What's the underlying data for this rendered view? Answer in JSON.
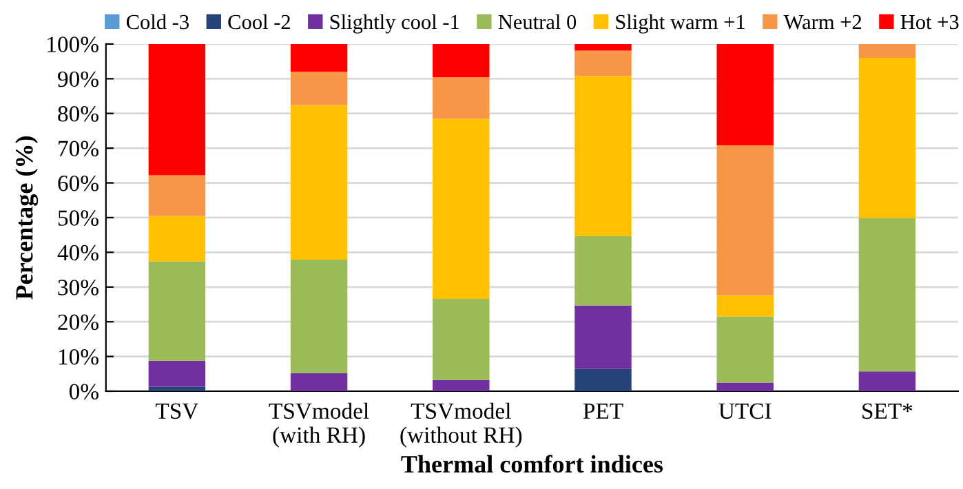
{
  "chart_data": {
    "type": "bar",
    "stacked": true,
    "xlabel": "Thermal comfort indices",
    "ylabel": "Percentage (%)",
    "categories": [
      "TSV",
      "TSVmodel\n(with RH)",
      "TSVmodel\n(without RH)",
      "PET",
      "UTCI",
      "SET*"
    ],
    "series": [
      {
        "name": "Cold -3",
        "color": "#5b9bd5",
        "values": [
          0,
          0,
          0,
          0,
          0,
          0
        ]
      },
      {
        "name": "Cool -2",
        "color": "#264478",
        "values": [
          1.3,
          0,
          0,
          6.4,
          0,
          0
        ]
      },
      {
        "name": "Slightly cool -1",
        "color": "#7030a0",
        "values": [
          7.5,
          5.2,
          3.2,
          18.3,
          2.5,
          5.7
        ]
      },
      {
        "name": "Neutral 0",
        "color": "#9bbb59",
        "values": [
          28.6,
          32.7,
          23.4,
          20.0,
          19.0,
          44.2
        ]
      },
      {
        "name": "Slight warm +1",
        "color": "#ffc000",
        "values": [
          13.1,
          44.5,
          51.9,
          46.1,
          6.1,
          46.1
        ]
      },
      {
        "name": "Warm +2",
        "color": "#f79646",
        "values": [
          11.7,
          9.6,
          11.9,
          7.3,
          43.2,
          4.0
        ]
      },
      {
        "name": "Hot +3",
        "color": "#ff0000",
        "values": [
          37.8,
          8.0,
          9.6,
          1.9,
          29.2,
          0
        ]
      }
    ],
    "ylim": [
      0,
      100
    ],
    "yticks": [
      {
        "value": 0,
        "label": "0%"
      },
      {
        "value": 10,
        "label": "10%"
      },
      {
        "value": 20,
        "label": "20%"
      },
      {
        "value": 30,
        "label": "30%"
      },
      {
        "value": 40,
        "label": "40%"
      },
      {
        "value": 50,
        "label": "50%"
      },
      {
        "value": 60,
        "label": "60%"
      },
      {
        "value": 70,
        "label": "70%"
      },
      {
        "value": 80,
        "label": "80%"
      },
      {
        "value": 90,
        "label": "90%"
      },
      {
        "value": 100,
        "label": "100%"
      }
    ],
    "grid": "y",
    "legend": "top"
  }
}
